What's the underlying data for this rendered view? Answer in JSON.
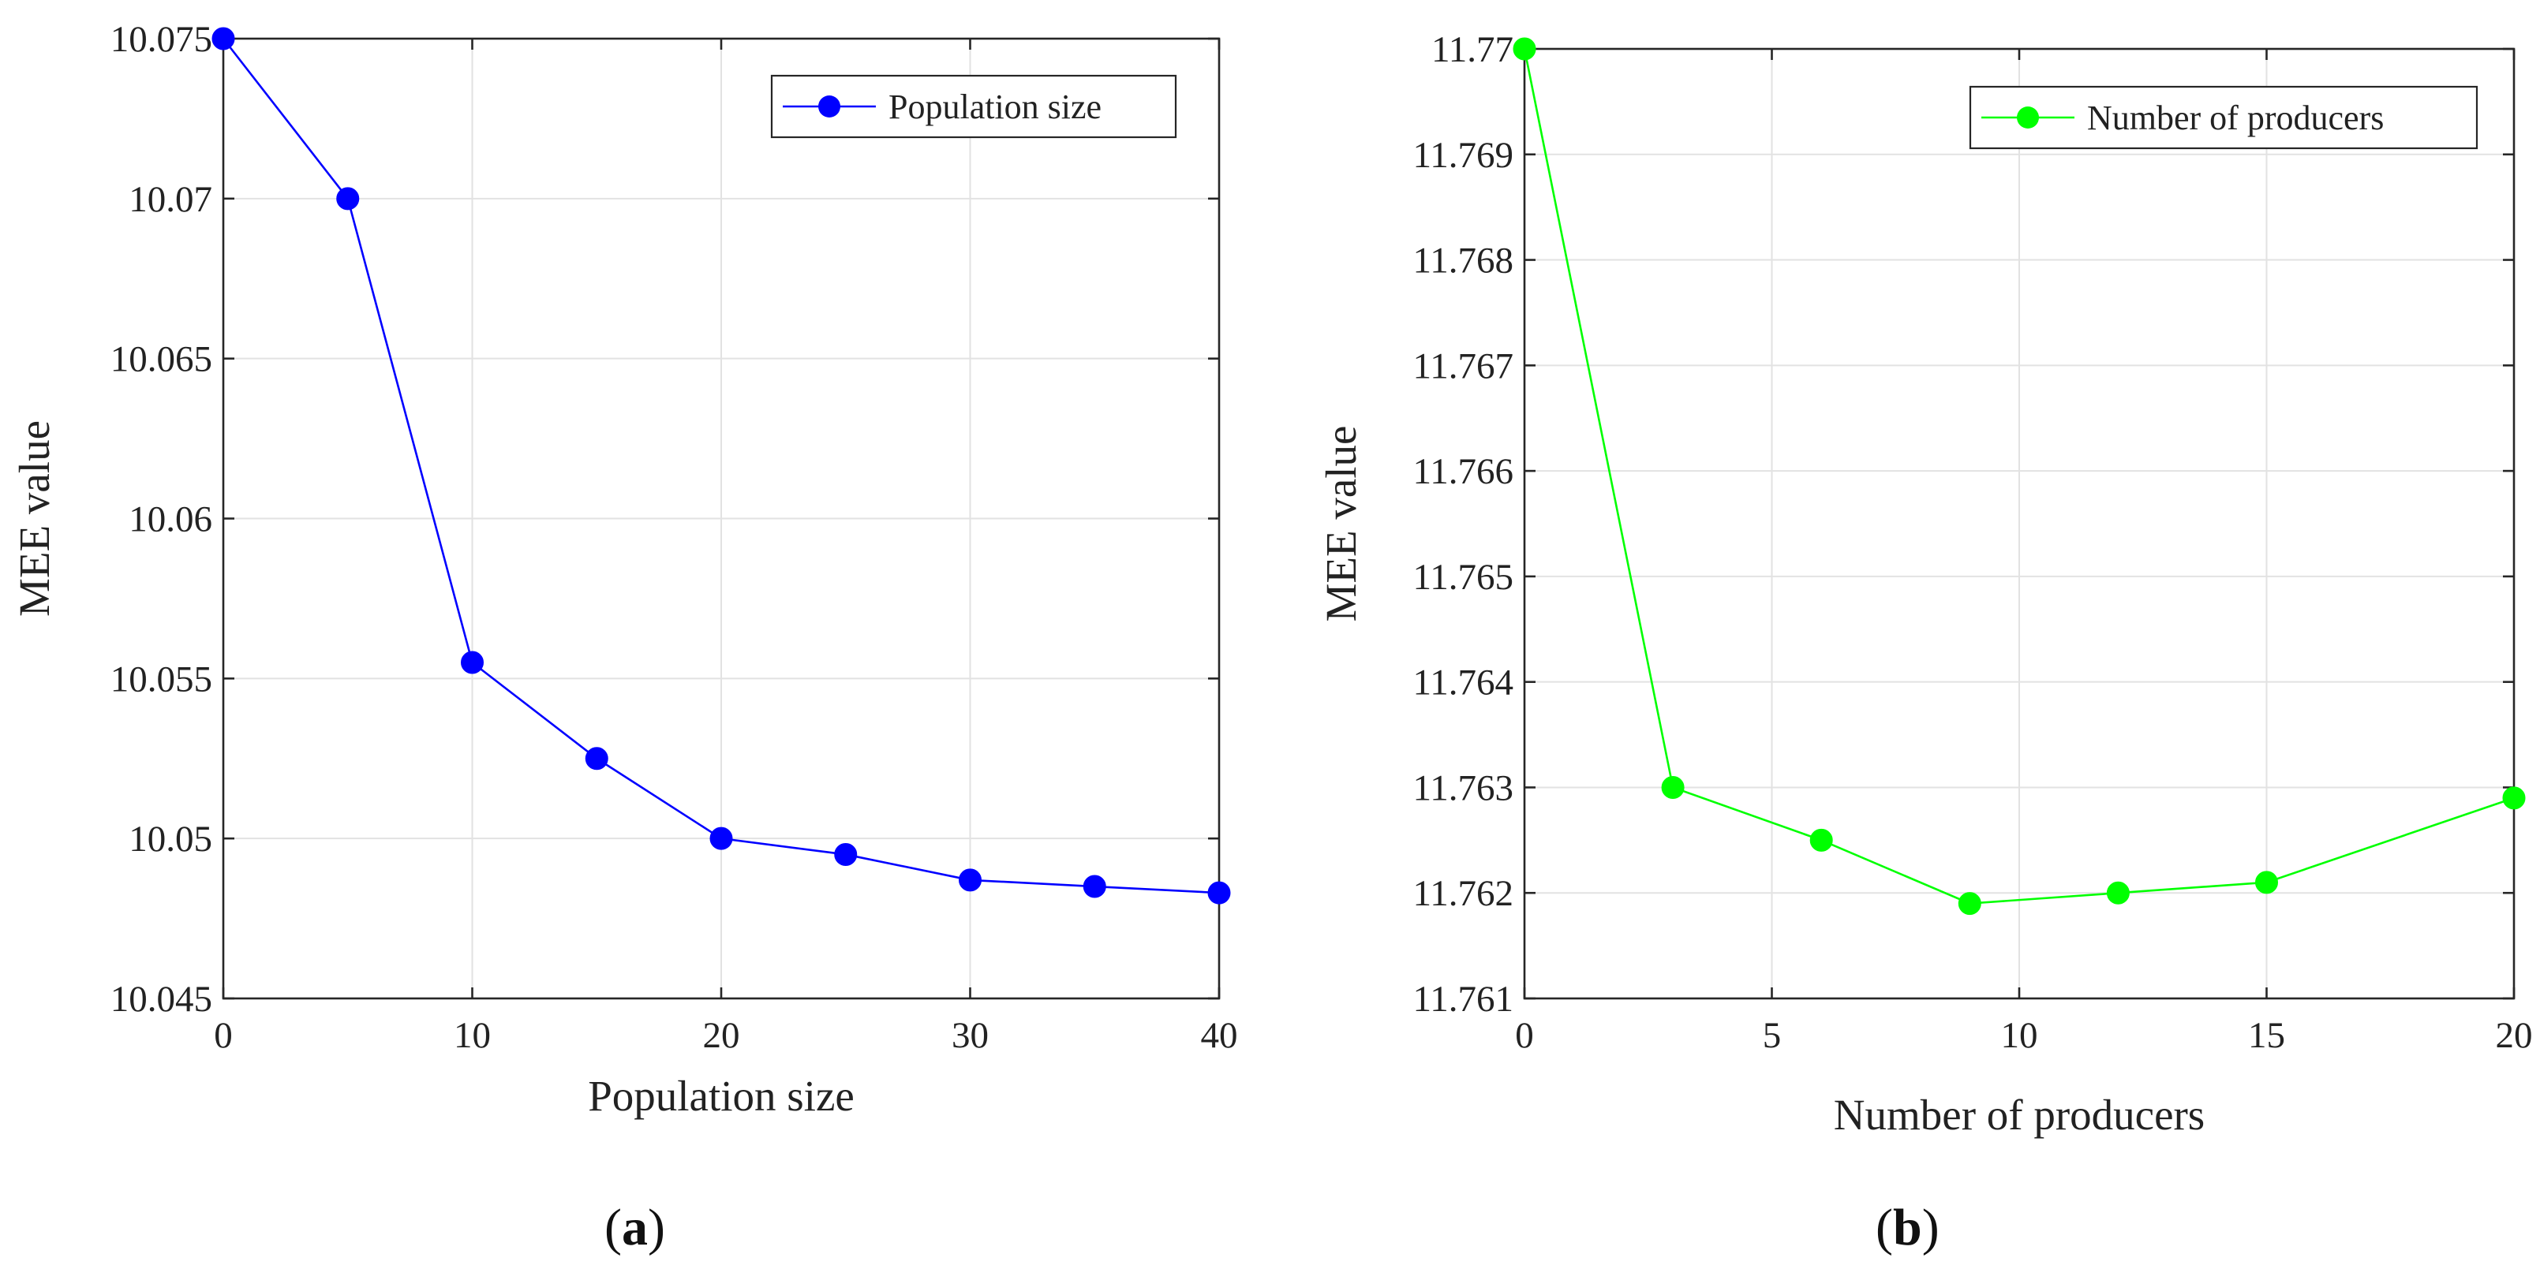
{
  "chart_data": [
    {
      "type": "line",
      "panel": "a",
      "caption": {
        "open": "(",
        "letter": "a",
        "close": ")"
      },
      "xlabel": "Population size",
      "ylabel": "MEE value",
      "xlim": [
        0,
        40
      ],
      "ylim": [
        10.045,
        10.075
      ],
      "xticks": [
        0,
        10,
        20,
        30,
        40
      ],
      "xtick_labels": [
        "0",
        "10",
        "20",
        "30",
        "40"
      ],
      "yticks": [
        10.045,
        10.05,
        10.055,
        10.06,
        10.065,
        10.07,
        10.075
      ],
      "ytick_labels": [
        "10.045",
        "10.05",
        "10.055",
        "10.06",
        "10.065",
        "10.07",
        "10.075"
      ],
      "grid": true,
      "legend_position": "top-right",
      "series": [
        {
          "name": "Population size",
          "color": "#0000ff",
          "x": [
            0,
            5,
            10,
            15,
            20,
            25,
            30,
            35,
            40
          ],
          "y": [
            10.075,
            10.07,
            10.0555,
            10.0525,
            10.05,
            10.0495,
            10.0487,
            10.0485,
            10.0483
          ]
        }
      ]
    },
    {
      "type": "line",
      "panel": "b",
      "caption": {
        "open": "(",
        "letter": "b",
        "close": ")"
      },
      "xlabel": "Number of producers",
      "ylabel": "MEE value",
      "xlim": [
        0,
        20
      ],
      "ylim": [
        11.761,
        11.77
      ],
      "xticks": [
        0,
        5,
        10,
        15,
        20
      ],
      "xtick_labels": [
        "0",
        "5",
        "10",
        "15",
        "20"
      ],
      "yticks": [
        11.761,
        11.762,
        11.763,
        11.764,
        11.765,
        11.766,
        11.767,
        11.768,
        11.769,
        11.77
      ],
      "ytick_labels": [
        "11.761",
        "11.762",
        "11.763",
        "11.764",
        "11.765",
        "11.766",
        "11.767",
        "11.768",
        "11.769",
        "11.77"
      ],
      "grid": true,
      "legend_position": "top-right",
      "series": [
        {
          "name": "Number of producers",
          "color": "#00ff00",
          "x": [
            0,
            3,
            6,
            9,
            12,
            15,
            20
          ],
          "y": [
            11.77,
            11.763,
            11.7625,
            11.7619,
            11.762,
            11.7621,
            11.7629
          ]
        }
      ]
    }
  ]
}
